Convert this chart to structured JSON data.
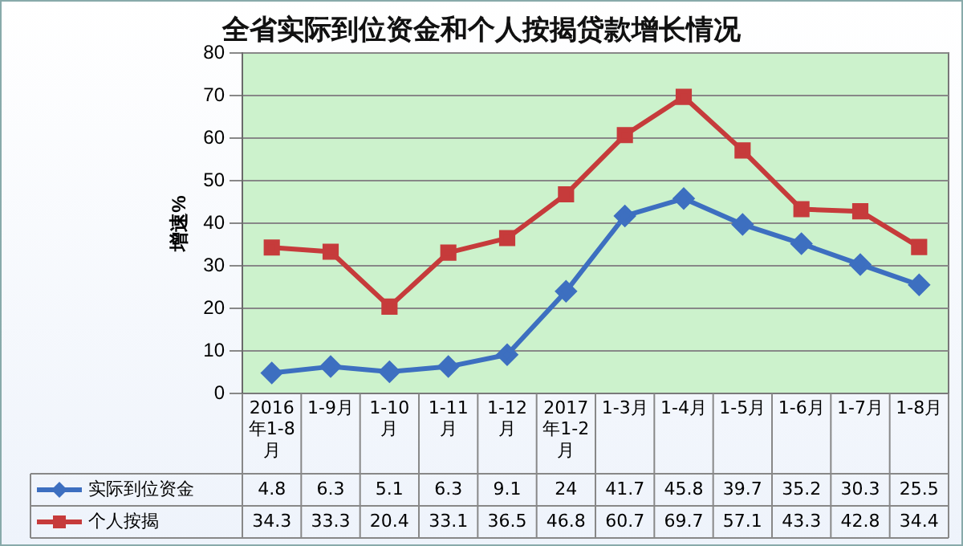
{
  "chart_data": {
    "type": "line",
    "title": "全省实际到位资金和个人按揭贷款增长情况",
    "ylabel": "增速%",
    "categories": [
      "2016年1-8月",
      "1-9月",
      "1-10月",
      "1-11月",
      "1-12月",
      "2017年1-2月",
      "1-3月",
      "1-4月",
      "1-5月",
      "1-6月",
      "1-7月",
      "1-8月"
    ],
    "series": [
      {
        "name": "实际到位资金",
        "color": "#3d6fc0",
        "marker": "diamond",
        "values": [
          4.8,
          6.3,
          5.1,
          6.3,
          9.1,
          24,
          41.7,
          45.8,
          39.7,
          35.2,
          30.3,
          25.5
        ]
      },
      {
        "name": "个人按揭",
        "color": "#c63b3b",
        "marker": "square",
        "values": [
          34.3,
          33.3,
          20.4,
          33.1,
          36.5,
          46.8,
          60.7,
          69.7,
          57.1,
          43.3,
          42.8,
          34.4
        ]
      }
    ],
    "ylim": [
      0,
      80
    ],
    "yticks": [
      0,
      10,
      20,
      30,
      40,
      50,
      60,
      70,
      80
    ],
    "grid": "y",
    "legend": "bottom",
    "data_labels": true
  }
}
